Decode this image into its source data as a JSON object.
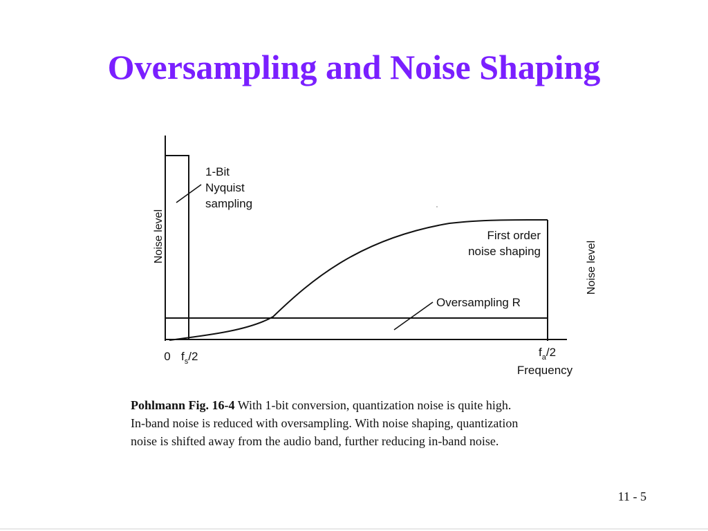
{
  "slide": {
    "title": "Oversampling and Noise Shaping",
    "page_number": "11 - 5"
  },
  "diagram": {
    "y_label_left": "Noise level",
    "y_label_right": "Noise level",
    "label_1bit": [
      "1-Bit",
      "Nyquist",
      "sampling"
    ],
    "label_first_order": [
      "First order",
      "noise shaping"
    ],
    "label_oversampling": "Oversampling R",
    "tick_zero": "0",
    "tick_fs_main": "f",
    "tick_fs_sub": "s",
    "tick_fs_tail": "/2",
    "tick_fa_main": "f",
    "tick_fa_sub": "a",
    "tick_fa_tail": "/2",
    "x_label": "Frequency"
  },
  "caption": {
    "bold": "Pohlmann Fig. 16-4",
    "line1": " With 1-bit conversion, quantization noise is quite high.",
    "line2": "In-band noise is reduced with oversampling. With noise shaping, quantization",
    "line3": "noise is shifted away from the audio band, further reducing in-band noise."
  }
}
